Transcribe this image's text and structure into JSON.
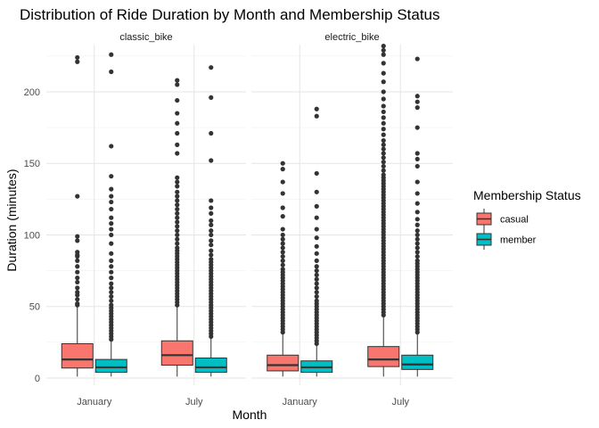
{
  "chart_data": {
    "type": "box",
    "title": "Distribution of Ride Duration by Month and Membership Status",
    "xlabel": "Month",
    "ylabel": "Duration (minutes)",
    "facets": [
      "classic_bike",
      "electric_bike"
    ],
    "categories": [
      "January",
      "July"
    ],
    "ylim": [
      -5,
      233
    ],
    "yticks": [
      0,
      50,
      100,
      150,
      200
    ],
    "grid": true,
    "legend": {
      "title": "Membership Status",
      "position": "right",
      "entries": [
        {
          "name": "casual",
          "color": "#F8766D"
        },
        {
          "name": "member",
          "color": "#00BFC4"
        }
      ]
    },
    "series": [
      {
        "name": "casual",
        "color": "#F8766D"
      },
      {
        "name": "member",
        "color": "#00BFC4"
      }
    ],
    "boxes": [
      {
        "facet": "classic_bike",
        "month": "January",
        "group": "casual",
        "q1": 7,
        "median": 13,
        "q3": 24,
        "whisker_low": 1,
        "whisker_high": 50,
        "outliers": [
          51,
          52,
          55,
          58,
          60,
          63,
          67,
          70,
          74,
          78,
          82,
          85,
          86,
          88,
          96,
          99,
          127,
          221,
          224
        ]
      },
      {
        "facet": "classic_bike",
        "month": "January",
        "group": "member",
        "q1": 4,
        "median": 7.5,
        "q3": 13,
        "whisker_low": 1,
        "whisker_high": 26,
        "outliers": [
          27,
          29,
          31,
          33,
          35,
          37,
          39,
          41,
          43,
          45,
          47,
          49,
          51,
          54,
          57,
          60,
          63,
          66,
          70,
          74,
          78,
          82,
          87,
          94,
          100,
          104,
          108,
          112,
          118,
          123,
          127,
          132,
          141,
          162,
          214,
          226
        ]
      },
      {
        "facet": "classic_bike",
        "month": "July",
        "group": "casual",
        "q1": 9,
        "median": 16,
        "q3": 26,
        "whisker_low": 1,
        "whisker_high": 50,
        "outliers": [
          51,
          53,
          55,
          57,
          59,
          61,
          63,
          65,
          67,
          69,
          71,
          73,
          75,
          77,
          79,
          81,
          83,
          85,
          87,
          89,
          91,
          94,
          97,
          100,
          103,
          106,
          109,
          112,
          115,
          118,
          121,
          124,
          127,
          130,
          134,
          137,
          140,
          157,
          163,
          171,
          178,
          185,
          194,
          205,
          208
        ]
      },
      {
        "facet": "classic_bike",
        "month": "July",
        "group": "member",
        "q1": 4,
        "median": 7.5,
        "q3": 14,
        "whisker_low": 1,
        "whisker_high": 28,
        "outliers": [
          29,
          31,
          33,
          35,
          37,
          39,
          41,
          43,
          45,
          47,
          49,
          51,
          53,
          55,
          57,
          59,
          61,
          63,
          65,
          67,
          69,
          71,
          73,
          75,
          77,
          79,
          81,
          83,
          86,
          89,
          93,
          96,
          100,
          103,
          107,
          110,
          115,
          119,
          124,
          152,
          171,
          196,
          217
        ]
      },
      {
        "facet": "electric_bike",
        "month": "January",
        "group": "casual",
        "q1": 5,
        "median": 9,
        "q3": 16,
        "whisker_low": 1,
        "whisker_high": 31,
        "outliers": [
          32,
          34,
          36,
          38,
          40,
          42,
          44,
          46,
          48,
          50,
          52,
          54,
          56,
          58,
          60,
          62,
          64,
          66,
          68,
          70,
          72,
          74,
          76,
          79,
          82,
          85,
          88,
          91,
          94,
          97,
          100,
          104,
          113,
          119,
          129,
          137,
          146,
          150
        ]
      },
      {
        "facet": "electric_bike",
        "month": "January",
        "group": "member",
        "q1": 4,
        "median": 7.5,
        "q3": 12,
        "whisker_low": 1,
        "whisker_high": 23,
        "outliers": [
          24,
          26,
          28,
          30,
          32,
          34,
          36,
          38,
          40,
          42,
          44,
          46,
          48,
          50,
          52,
          54,
          57,
          60,
          63,
          66,
          69,
          72,
          75,
          78,
          82,
          87,
          92,
          98,
          104,
          112,
          120,
          130,
          143,
          183,
          188
        ]
      },
      {
        "facet": "electric_bike",
        "month": "July",
        "group": "casual",
        "q1": 8,
        "median": 13,
        "q3": 22,
        "whisker_low": 1,
        "whisker_high": 43,
        "outliers": [
          44,
          46,
          48,
          50,
          52,
          54,
          56,
          58,
          60,
          62,
          64,
          66,
          68,
          70,
          72,
          74,
          76,
          78,
          80,
          82,
          84,
          86,
          88,
          90,
          92,
          94,
          96,
          98,
          100,
          102,
          104,
          106,
          108,
          110,
          112,
          114,
          116,
          118,
          120,
          122,
          124,
          126,
          128,
          130,
          132,
          134,
          136,
          138,
          140,
          142,
          145,
          148,
          151,
          154,
          157,
          160,
          163,
          166,
          170,
          174,
          178,
          182,
          186,
          190,
          195,
          200,
          207,
          213,
          220,
          226,
          229,
          232
        ]
      },
      {
        "facet": "electric_bike",
        "month": "July",
        "group": "member",
        "q1": 6,
        "median": 9.5,
        "q3": 16,
        "whisker_low": 1,
        "whisker_high": 31,
        "outliers": [
          32,
          34,
          36,
          38,
          40,
          42,
          44,
          46,
          48,
          50,
          52,
          54,
          56,
          58,
          60,
          62,
          64,
          66,
          68,
          70,
          72,
          74,
          76,
          78,
          80,
          82,
          85,
          88,
          91,
          94,
          97,
          100,
          103,
          107,
          111,
          116,
          122,
          129,
          137,
          148,
          153,
          157,
          175,
          189,
          193,
          197,
          223
        ]
      }
    ]
  }
}
